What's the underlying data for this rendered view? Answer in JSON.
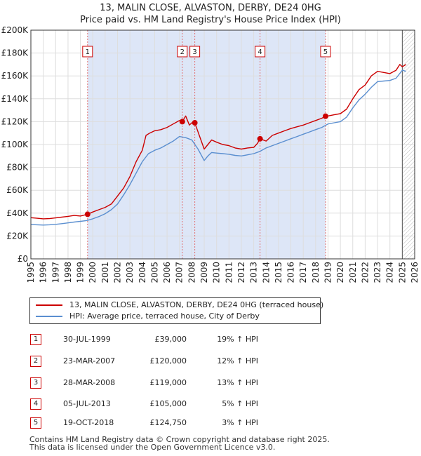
{
  "chart_data": {
    "type": "line",
    "title": "13, MALIN CLOSE, ALVASTON, DERBY, DE24 0HG",
    "subtitle": "Price paid vs. HM Land Registry's House Price Index (HPI)",
    "xlabel": "",
    "ylabel": "",
    "xlim": [
      1995,
      2026
    ],
    "ylim": [
      0,
      200000
    ],
    "y_ticks": [
      {
        "value": 0,
        "label": "£0"
      },
      {
        "value": 20000,
        "label": "£20K"
      },
      {
        "value": 40000,
        "label": "£40K"
      },
      {
        "value": 60000,
        "label": "£60K"
      },
      {
        "value": 80000,
        "label": "£80K"
      },
      {
        "value": 100000,
        "label": "£100K"
      },
      {
        "value": 120000,
        "label": "£120K"
      },
      {
        "value": 140000,
        "label": "£140K"
      },
      {
        "value": 160000,
        "label": "£160K"
      },
      {
        "value": 180000,
        "label": "£180K"
      },
      {
        "value": 200000,
        "label": "£200K"
      }
    ],
    "x_ticks": [
      "1995",
      "1996",
      "1997",
      "1998",
      "1999",
      "2000",
      "2001",
      "2002",
      "2003",
      "2004",
      "2005",
      "2006",
      "2007",
      "2008",
      "2009",
      "2010",
      "2011",
      "2012",
      "2013",
      "2014",
      "2015",
      "2016",
      "2017",
      "2018",
      "2019",
      "2020",
      "2021",
      "2022",
      "2023",
      "2024",
      "2025",
      "2026"
    ],
    "grid": true,
    "legend_position": "below",
    "colors": {
      "property": "#cc0000",
      "hpi": "#5b8fd0",
      "shade": "#dde6f7",
      "grid": "#dddddd",
      "marker_line": "#e07070"
    },
    "shaded_region": [
      1999.58,
      2018.8
    ],
    "forecast_start": 2025.0,
    "series": [
      {
        "name": "13, MALIN CLOSE, ALVASTON, DERBY, DE24 0HG (terraced house)",
        "color": "#cc0000",
        "x": [
          1995,
          1995.5,
          1996,
          1996.5,
          1997,
          1997.5,
          1998,
          1998.5,
          1999,
          1999.58,
          2000,
          2000.5,
          2001,
          2001.5,
          2002,
          2002.5,
          2003,
          2003.5,
          2004,
          2004.3,
          2004.6,
          2005,
          2005.5,
          2006,
          2006.5,
          2007,
          2007.23,
          2007.5,
          2007.8,
          2008,
          2008.24,
          2008.6,
          2009,
          2009.3,
          2009.6,
          2010,
          2010.5,
          2011,
          2011.5,
          2012,
          2012.5,
          2013,
          2013.3,
          2013.51,
          2014,
          2014.5,
          2015,
          2015.5,
          2016,
          2016.5,
          2017,
          2017.5,
          2018,
          2018.5,
          2018.8,
          2019,
          2019.5,
          2020,
          2020.5,
          2021,
          2021.5,
          2022,
          2022.5,
          2023,
          2023.5,
          2024,
          2024.5,
          2024.8,
          2025,
          2025.3
        ],
        "y": [
          36000,
          35500,
          35000,
          35200,
          35800,
          36500,
          37200,
          38000,
          37500,
          39000,
          41000,
          43000,
          45000,
          48000,
          55000,
          62000,
          72000,
          85000,
          95000,
          108000,
          110000,
          112000,
          113000,
          115000,
          118000,
          121000,
          120000,
          125000,
          117000,
          119000,
          119000,
          108000,
          96000,
          100000,
          104000,
          102000,
          100000,
          99000,
          97000,
          96000,
          97000,
          97500,
          101000,
          105000,
          103000,
          108000,
          110000,
          112000,
          114000,
          115500,
          117000,
          119000,
          121000,
          123000,
          124750,
          125000,
          126000,
          127000,
          131000,
          140000,
          148000,
          152000,
          160000,
          164000,
          163000,
          162000,
          165000,
          170000,
          168000,
          170000
        ]
      },
      {
        "name": "HPI: Average price, terraced house, City of Derby",
        "color": "#5b8fd0",
        "x": [
          1995,
          1995.5,
          1996,
          1996.5,
          1997,
          1997.5,
          1998,
          1998.5,
          1999,
          1999.5,
          2000,
          2000.5,
          2001,
          2001.5,
          2002,
          2002.5,
          2003,
          2003.5,
          2004,
          2004.5,
          2005,
          2005.5,
          2006,
          2006.5,
          2007,
          2007.5,
          2008,
          2008.5,
          2009,
          2009.3,
          2009.6,
          2010,
          2010.5,
          2011,
          2011.5,
          2012,
          2012.5,
          2013,
          2013.5,
          2014,
          2014.5,
          2015,
          2015.5,
          2016,
          2016.5,
          2017,
          2017.5,
          2018,
          2018.5,
          2019,
          2019.5,
          2020,
          2020.5,
          2021,
          2021.5,
          2022,
          2022.5,
          2023,
          2023.5,
          2024,
          2024.5,
          2025,
          2025.3
        ],
        "y": [
          30000,
          29800,
          29600,
          29800,
          30200,
          30800,
          31500,
          32200,
          32800,
          33500,
          35000,
          37000,
          39500,
          43000,
          48000,
          56000,
          65000,
          75000,
          85000,
          92000,
          95000,
          97000,
          100000,
          103000,
          107000,
          106000,
          104000,
          96000,
          86000,
          90000,
          93000,
          92500,
          92000,
          91500,
          90500,
          90000,
          91000,
          92000,
          94000,
          97000,
          99000,
          101000,
          103000,
          105000,
          107000,
          109000,
          111000,
          113000,
          115000,
          118000,
          119000,
          120000,
          124000,
          132000,
          139000,
          144000,
          150000,
          155000,
          155500,
          156000,
          158000,
          165000,
          164000
        ]
      }
    ],
    "markers": [
      {
        "id": "1",
        "x": 1999.58,
        "price": 39000
      },
      {
        "id": "2",
        "x": 2007.23,
        "price": 120000
      },
      {
        "id": "3",
        "x": 2008.24,
        "price": 119000
      },
      {
        "id": "4",
        "x": 2013.51,
        "price": 105000
      },
      {
        "id": "5",
        "x": 2018.8,
        "price": 124750
      }
    ]
  },
  "legend": {
    "property": "13, MALIN CLOSE, ALVASTON, DERBY, DE24 0HG (terraced house)",
    "hpi": "HPI: Average price, terraced house, City of Derby"
  },
  "sales": [
    {
      "num": "1",
      "date": "30-JUL-1999",
      "price": "£39,000",
      "hpi": "19% ↑ HPI"
    },
    {
      "num": "2",
      "date": "23-MAR-2007",
      "price": "£120,000",
      "hpi": "12% ↑ HPI"
    },
    {
      "num": "3",
      "date": "28-MAR-2008",
      "price": "£119,000",
      "hpi": "13% ↑ HPI"
    },
    {
      "num": "4",
      "date": "05-JUL-2013",
      "price": "£105,000",
      "hpi": "5% ↑ HPI"
    },
    {
      "num": "5",
      "date": "19-OCT-2018",
      "price": "£124,750",
      "hpi": "3% ↑ HPI"
    }
  ],
  "footer": {
    "line1": "Contains HM Land Registry data © Crown copyright and database right 2025.",
    "line2": "This data is licensed under the Open Government Licence v3.0."
  }
}
